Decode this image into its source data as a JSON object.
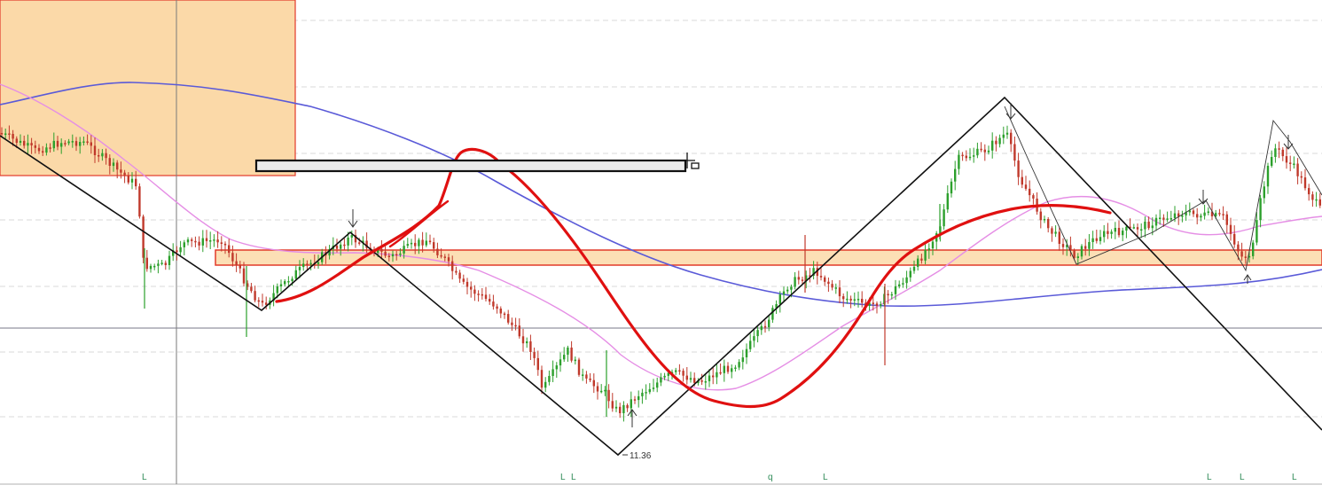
{
  "colors": {
    "background": "#ffffff",
    "bullish_candle": "#2ca02c",
    "bearish_candle": "#c0392b",
    "zigzag": "#111111",
    "ma_blue": "#5a5ad8",
    "ma_pink": "#e58ee5",
    "freehand": "#e01010",
    "zone_fill": "#fbd9a8",
    "zone_border": "#e23a2a",
    "bottom_mark": "#2e8b57"
  },
  "chart_data": {
    "type": "candlestick",
    "title": "",
    "xlabel": "",
    "ylabel": "",
    "price_labels": [
      {
        "text": "11.36",
        "x": 710,
        "y": 11.36
      }
    ],
    "bottom_marks": [
      {
        "text": "L",
        "x": 160
      },
      {
        "text": "L",
        "x": 632
      },
      {
        "text": "L",
        "x": 644
      },
      {
        "text": "q",
        "x": 866
      },
      {
        "text": "L",
        "x": 928
      },
      {
        "text": "L",
        "x": 1361
      },
      {
        "text": "L",
        "x": 1398
      },
      {
        "text": "L",
        "x": 1457
      }
    ],
    "grid": true
  }
}
